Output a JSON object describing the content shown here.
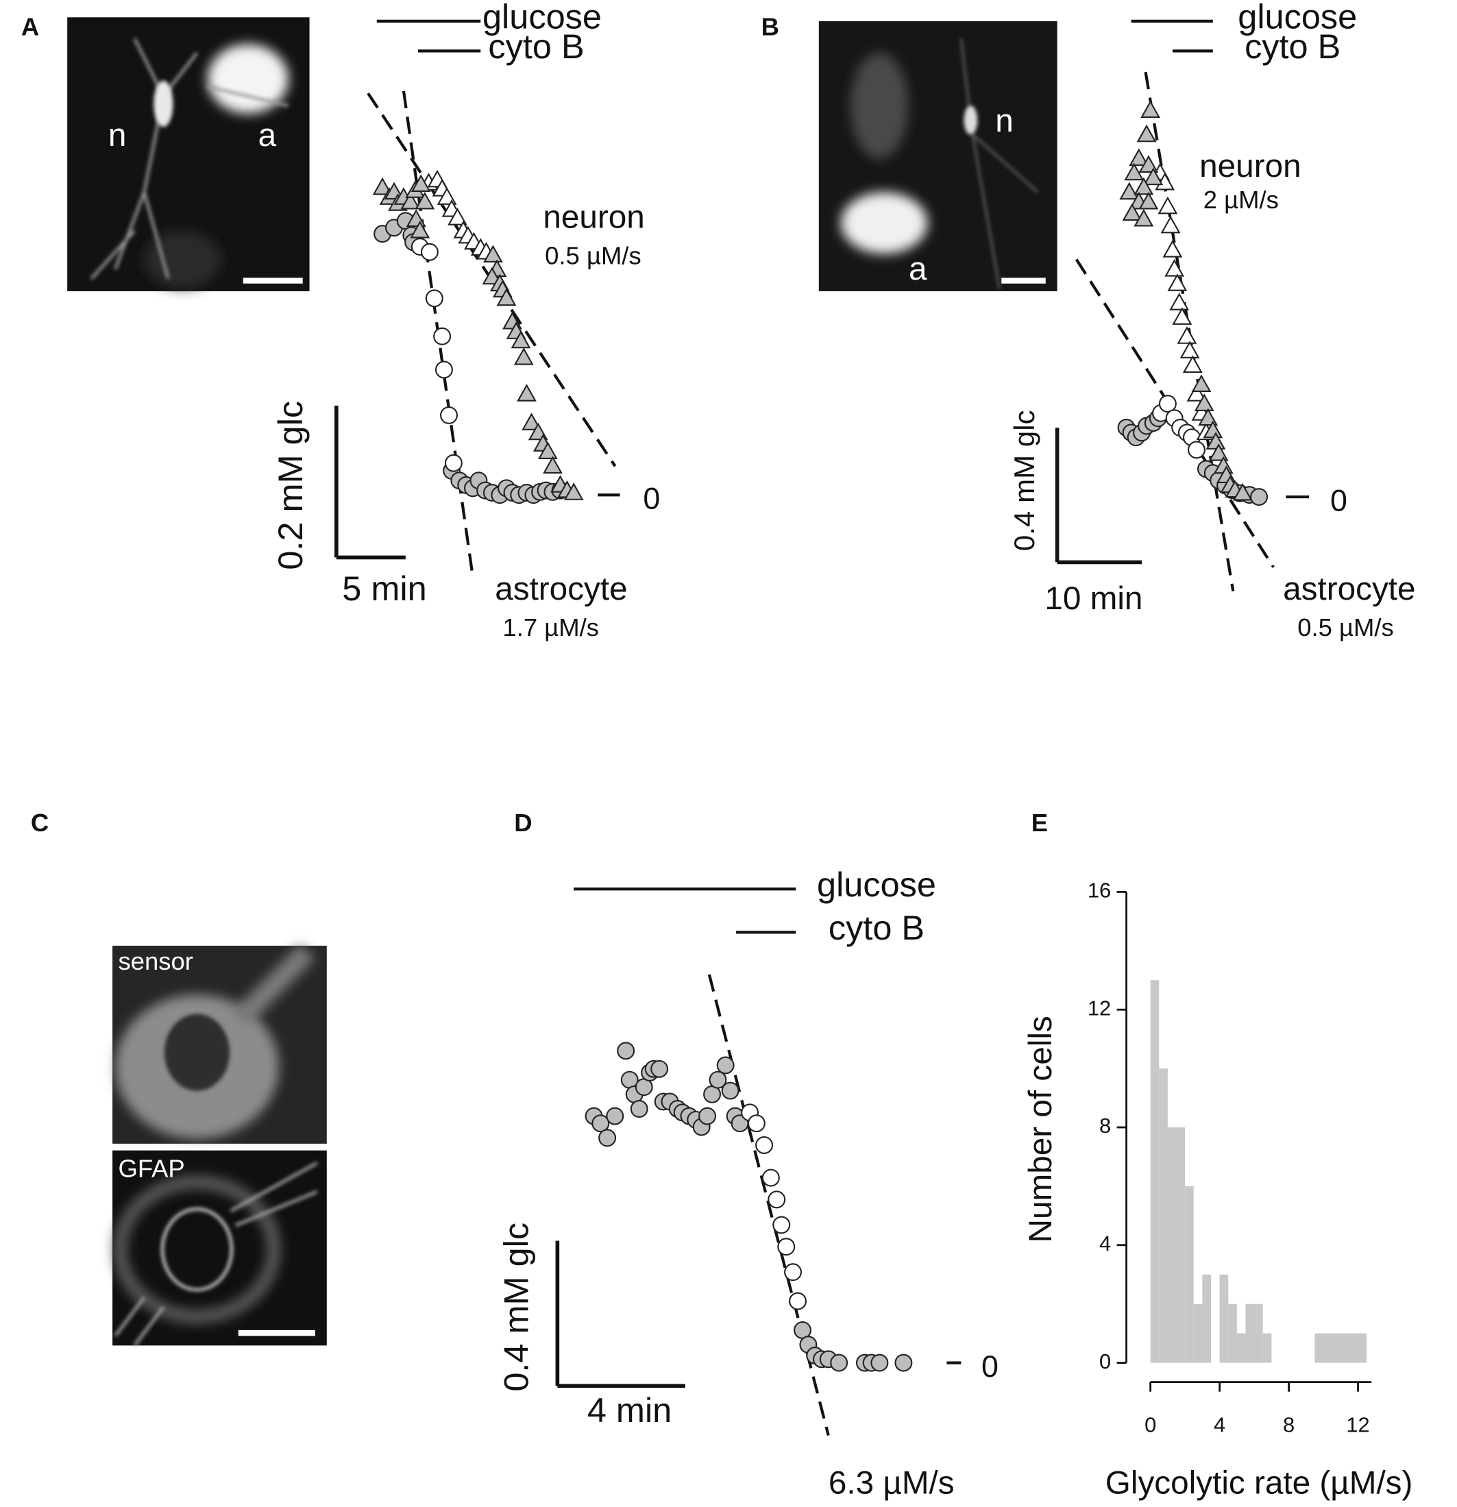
{
  "chart_data": [
    {
      "type": "scatter",
      "panel": "A",
      "image_labels": [
        "n",
        "a"
      ],
      "xlim": [
        0,
        22
      ],
      "ylim": [
        -0.12,
        0.55
      ],
      "yticks": [
        0
      ],
      "treatments": [
        {
          "label": "glucose",
          "start": 2.92,
          "end": 10.42
        },
        {
          "label": "cyto B",
          "start": 5.9,
          "end": 10.42
        }
      ],
      "fits": [
        {
          "x": [
            2.29,
            20.14
          ],
          "y": [
            0.529,
            0.038
          ]
        },
        {
          "x": [
            4.86,
            9.86
          ],
          "y": [
            0.532,
            -0.108
          ]
        }
      ],
      "series": [
        {
          "marker": "circle",
          "color": "#bdbdbd",
          "x": [
            3.33,
            4.17,
            5,
            5.42,
            5.56,
            8.33,
            8.89,
            9.38,
            9.86,
            10.28,
            10.76,
            11.25,
            11.81,
            12.29,
            12.71,
            13.19,
            13.75,
            14.24,
            14.72,
            15.14,
            15.63,
            16.18
          ],
          "values": [
            0.344,
            0.352,
            0.361,
            0.342,
            0.333,
            0.032,
            0.019,
            0.013,
            0.009,
            0.019,
            0.006,
            0.003,
            0,
            0.009,
            0.003,
            0,
            0.003,
            0,
            0.004,
            0.006,
            0.004,
            0.006
          ]
        },
        {
          "marker": "circle",
          "color": "#ffffff",
          "x": [
            6.04,
            6.74,
            7.08,
            7.64,
            7.78,
            8.13,
            8.47
          ],
          "values": [
            0.327,
            0.32,
            0.259,
            0.209,
            0.165,
            0.105,
            0.042
          ]
        },
        {
          "marker": "triangle",
          "color": "#ffffff",
          "x": [
            6.67,
            7.29,
            7.64,
            7.99,
            8.33,
            8.75,
            9.17,
            9.51,
            9.93,
            10.42,
            10.83
          ],
          "values": [
            0.411,
            0.415,
            0.403,
            0.392,
            0.376,
            0.365,
            0.348,
            0.341,
            0.333,
            0.325,
            0.32
          ]
        },
        {
          "marker": "triangle",
          "color": "#bdbdbd",
          "x": [
            3.33,
            3.82,
            4.17,
            4.44,
            4.86,
            5.35,
            5.69,
            6.11,
            6.39,
            5.76,
            6.04,
            11.32,
            11.6,
            11.25,
            11.81,
            12.01,
            12.29,
            12.71,
            12.99,
            13.33,
            13.54,
            13.75,
            14.1,
            14.58,
            14.93,
            15.28,
            15.63,
            16.18,
            16.67,
            17.15
          ],
          "values": [
            0.405,
            0.392,
            0.399,
            0.384,
            0.392,
            0.386,
            0.401,
            0.409,
            0.386,
            0.363,
            0.348,
            0.316,
            0.297,
            0.287,
            0.278,
            0.27,
            0.259,
            0.228,
            0.215,
            0.203,
            0.181,
            0.133,
            0.095,
            0.082,
            0.067,
            0.057,
            0.038,
            0.013,
            0.006,
            0.003
          ]
        }
      ],
      "scale_bar": {
        "x": 5,
        "x_label": "5 min",
        "y": 0.2,
        "y_label": "0.2 mM glc"
      },
      "annotations": [
        "neuron",
        "0.5 µM/s",
        "astrocyte",
        "1.7 µM/s"
      ]
    },
    {
      "type": "scatter",
      "panel": "B",
      "image_labels": [
        "n",
        "a"
      ],
      "xlim": [
        0,
        28
      ],
      "ylim": [
        -0.3,
        1.35
      ],
      "yticks": [
        0
      ],
      "treatments": [
        {
          "label": "glucose",
          "start": 8.75,
          "end": 18.41
        },
        {
          "label": "cyto B",
          "start": 13.64,
          "end": 18.41
        }
      ],
      "fits": [
        {
          "x": [
            10.45,
            20.8
          ],
          "y": [
            1.263,
            -0.28
          ]
        },
        {
          "x": [
            2.27,
            25.57
          ],
          "y": [
            0.706,
            -0.209
          ]
        }
      ],
      "series": [
        {
          "marker": "circle",
          "color": "#bdbdbd",
          "x": [
            8.18,
            8.75,
            9.32,
            10,
            10.57,
            11.36,
            11.93,
            17.61,
            18.41,
            19.09,
            19.89,
            20.68,
            21.59,
            22.73,
            23.86
          ],
          "values": [
            0.206,
            0.191,
            0.177,
            0.191,
            0.211,
            0.22,
            0.234,
            0.083,
            0.071,
            0.049,
            0.034,
            0.02,
            0.011,
            0.006,
            0
          ]
        },
        {
          "marker": "circle",
          "color": "#ffffff",
          "x": [
            12.27,
            13.07,
            13.86,
            14.55,
            15.34,
            15.91,
            16.48
          ],
          "values": [
            0.249,
            0.277,
            0.234,
            0.206,
            0.191,
            0.177,
            0.14
          ]
        },
        {
          "marker": "triangle",
          "color": "#ffffff",
          "x": [
            12.16,
            12.73,
            13.07,
            13.41,
            13.64,
            13.86,
            14.2,
            14.43,
            14.77,
            15.34,
            15.68,
            16.02,
            16.48,
            17.05,
            17.61
          ],
          "values": [
            0.963,
            0.934,
            0.863,
            0.806,
            0.734,
            0.677,
            0.634,
            0.577,
            0.534,
            0.477,
            0.434,
            0.391,
            0.306,
            0.249,
            0.191
          ]
        },
        {
          "marker": "triangle",
          "color": "#bdbdbd",
          "x": [
            11.02,
            10.57,
            9.66,
            10.8,
            9.09,
            11.36,
            8.52,
            10.23,
            9.66,
            8.86,
            10.8,
            10.23,
            17.05,
            17.39,
            17.84,
            18.41,
            18.75,
            19.09,
            19.66,
            20,
            20.45,
            21.02,
            21.93
          ],
          "values": [
            1.149,
            1.077,
            1.006,
            0.986,
            0.963,
            0.949,
            0.906,
            0.92,
            0.877,
            0.843,
            0.877,
            0.826,
            0.334,
            0.277,
            0.234,
            0.197,
            0.163,
            0.129,
            0.091,
            0.063,
            0.034,
            0.02,
            0.011
          ]
        }
      ],
      "scale_bar": {
        "x": 10,
        "x_label": "10 min",
        "y": 0.4,
        "y_label": "0.4 mM glc"
      },
      "annotations": [
        "neuron",
        "2 µM/s",
        "astrocyte",
        "0.5 µM/s"
      ]
    },
    {
      "type": "scatter",
      "panel": "D",
      "xlim": [
        0,
        12
      ],
      "ylim": [
        -0.2,
        1.2
      ],
      "yticks": [
        0
      ],
      "treatments": [
        {
          "label": "glucose",
          "start": 0.51,
          "end": 7.46
        },
        {
          "label": "cyto B",
          "start": 5.59,
          "end": 7.46
        }
      ],
      "fits": [
        {
          "x": [
            4.75,
            8.48
          ],
          "y": [
            1.07,
            -0.2
          ]
        }
      ],
      "series": [
        {
          "marker": "circle",
          "color": "#bdbdbd",
          "x": [
            1.14,
            1.35,
            1.56,
            1.8,
            2.14,
            2.26,
            2.41,
            2.56,
            2.71,
            2.89,
            3.01,
            3.19,
            3.31,
            3.52,
            3.76,
            3.91,
            4.12,
            4.33,
            4.51,
            4.69,
            4.84,
            5.02,
            5.26,
            5.41,
            5.56,
            5.71,
            7.67,
            7.85,
            8.06,
            8.27,
            8.48,
            8.81,
            9.62,
            9.83,
            10.08,
            10.83
          ],
          "values": [
            0.68,
            0.66,
            0.62,
            0.68,
            0.86,
            0.78,
            0.74,
            0.7,
            0.76,
            0.8,
            0.81,
            0.81,
            0.72,
            0.72,
            0.7,
            0.69,
            0.68,
            0.67,
            0.65,
            0.68,
            0.74,
            0.78,
            0.82,
            0.75,
            0.68,
            0.66,
            0.09,
            0.05,
            0.02,
            0.01,
            0.01,
            0,
            0,
            0,
            0,
            0
          ]
        },
        {
          "marker": "circle",
          "color": "#ffffff",
          "x": [
            6.02,
            6.23,
            6.47,
            6.68,
            6.86,
            7.01,
            7.16,
            7.37,
            7.52
          ],
          "values": [
            0.69,
            0.66,
            0.6,
            0.51,
            0.45,
            0.38,
            0.32,
            0.25,
            0.17
          ]
        }
      ],
      "scale_bar": {
        "x": 4,
        "x_label": "4 min",
        "y": 0.4,
        "y_label": "0.4 mM glc"
      },
      "annotations": [
        "6.3 µM/s"
      ]
    },
    {
      "type": "histogram",
      "panel": "E",
      "color": "#c8c8c8",
      "bins": [
        0,
        0.5,
        1,
        1.5,
        2,
        2.5,
        3,
        3.5,
        4,
        4.5,
        5,
        5.5,
        6,
        6.5,
        7,
        7.5,
        8,
        8.5,
        9,
        9.5,
        10,
        10.5,
        11,
        11.5,
        12,
        12.5
      ],
      "values": [
        13,
        10,
        8,
        8,
        6,
        2,
        3,
        0,
        3,
        2,
        1,
        2,
        2,
        1,
        0,
        0,
        0,
        0,
        0,
        1,
        1,
        1,
        1,
        1,
        1
      ],
      "xlim": [
        0,
        12.8
      ],
      "ylim": [
        0,
        16
      ],
      "xticks": [
        0,
        4,
        8,
        12
      ],
      "yticks": [
        0,
        4,
        8,
        12,
        16
      ],
      "xlabel": "Glycolytic rate (µM/s)",
      "ylabel": "Number of cells"
    }
  ],
  "image_panel": {
    "panel": "C",
    "labels": [
      "sensor",
      "GFAP"
    ]
  }
}
